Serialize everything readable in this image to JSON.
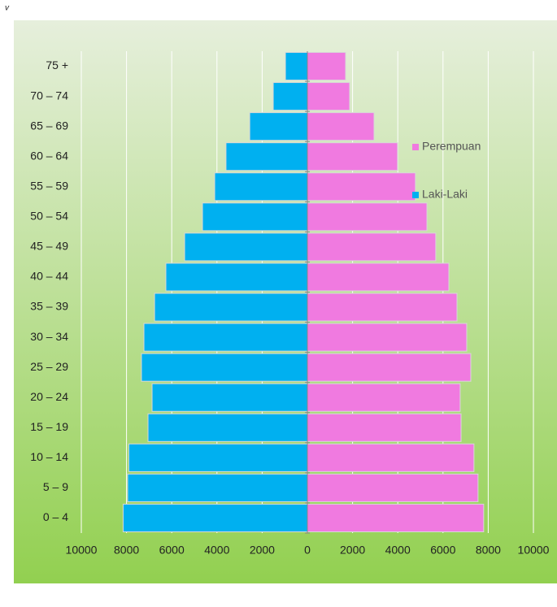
{
  "chart_data": {
    "type": "pyramid",
    "annotation": "v",
    "categories": [
      "0 – 4",
      "5 – 9",
      "10 – 14",
      "15 – 19",
      "20 – 24",
      "25 – 29",
      "30 – 34",
      "35 – 39",
      "40 – 44",
      "45 – 49",
      "50 – 54",
      "55 – 59",
      "60 – 64",
      "65 – 69",
      "70 – 74",
      "75 +"
    ],
    "series": [
      {
        "name": "Laki-Laki",
        "color": "#00b0f0",
        "side": "left",
        "values": [
          8150,
          7950,
          7900,
          7050,
          6870,
          7340,
          7230,
          6760,
          6260,
          5430,
          4640,
          4100,
          3600,
          2550,
          1510,
          970
        ]
      },
      {
        "name": "Perempuan",
        "color": "#f07ae0",
        "side": "right",
        "values": [
          7800,
          7550,
          7370,
          6800,
          6760,
          7230,
          7050,
          6620,
          6260,
          5680,
          5290,
          4780,
          3990,
          2950,
          1870,
          1690
        ]
      }
    ],
    "xlim": [
      -10000,
      10000
    ],
    "xticks": [
      {
        "value": -10000,
        "label": "10000"
      },
      {
        "value": -8000,
        "label": "8000"
      },
      {
        "value": -6000,
        "label": "6000"
      },
      {
        "value": -4000,
        "label": "4000"
      },
      {
        "value": -2000,
        "label": "2000"
      },
      0,
      2000,
      4000,
      6000,
      8000,
      10000
    ],
    "grid": true
  }
}
